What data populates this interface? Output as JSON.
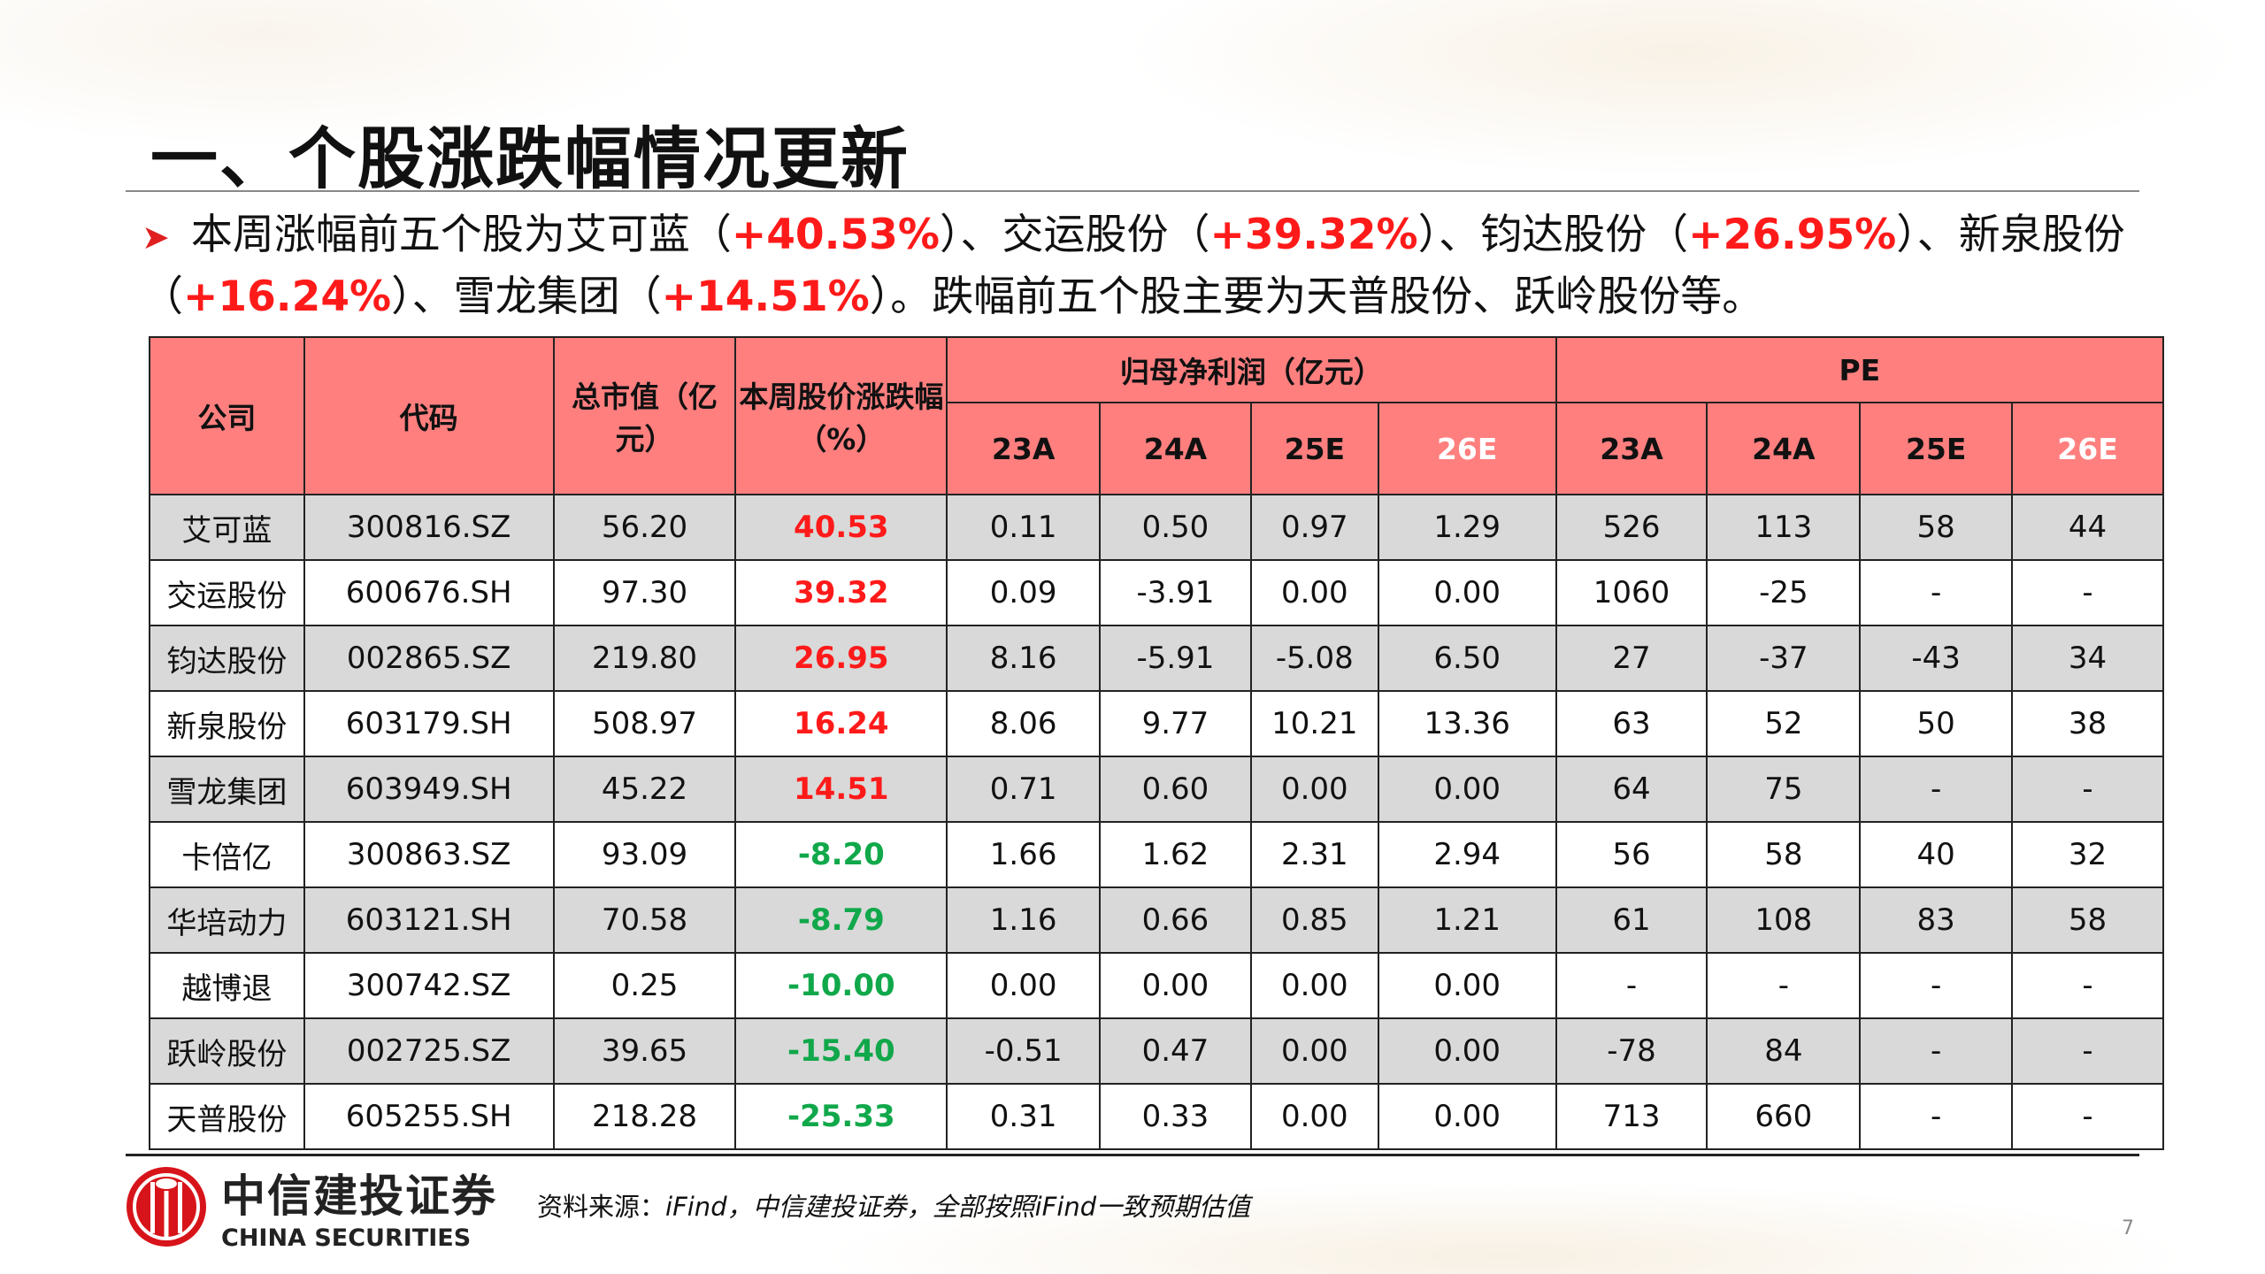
{
  "title": "一、个股涨跌幅情况更新",
  "bullet": {
    "p1": "本周涨幅前五个股为艾可蓝（",
    "v1": "+40.53%",
    "p2": "）、交运股份（",
    "v2": "+39.32%",
    "p3": "）、钧达股份（",
    "v3": "+26.95%",
    "p4": "）、新泉股份（",
    "v4": "+16.24%",
    "p5": "）、雪龙集团（",
    "v5": "+14.51%",
    "p6": "）。跌幅前五个股主要为天普股份、跃岭股份等。"
  },
  "table": {
    "headers": {
      "company": "公司",
      "code": "代码",
      "mcap": "总市值（亿元）",
      "change": "本周股价涨跌幅（%）",
      "profit": "归母净利润（亿元）",
      "pe": "PE",
      "years": [
        "23A",
        "24A",
        "25E",
        "26E"
      ]
    },
    "rows": [
      [
        "艾可蓝",
        "300816.SZ",
        "56.20",
        "40.53",
        "0.11",
        "0.50",
        "0.97",
        "1.29",
        "526",
        "113",
        "58",
        "44"
      ],
      [
        "交运股份",
        "600676.SH",
        "97.30",
        "39.32",
        "0.09",
        "-3.91",
        "0.00",
        "0.00",
        "1060",
        "-25",
        "-",
        "-"
      ],
      [
        "钧达股份",
        "002865.SZ",
        "219.80",
        "26.95",
        "8.16",
        "-5.91",
        "-5.08",
        "6.50",
        "27",
        "-37",
        "-43",
        "34"
      ],
      [
        "新泉股份",
        "603179.SH",
        "508.97",
        "16.24",
        "8.06",
        "9.77",
        "10.21",
        "13.36",
        "63",
        "52",
        "50",
        "38"
      ],
      [
        "雪龙集团",
        "603949.SH",
        "45.22",
        "14.51",
        "0.71",
        "0.60",
        "0.00",
        "0.00",
        "64",
        "75",
        "-",
        "-"
      ],
      [
        "卡倍亿",
        "300863.SZ",
        "93.09",
        "-8.20",
        "1.66",
        "1.62",
        "2.31",
        "2.94",
        "56",
        "58",
        "40",
        "32"
      ],
      [
        "华培动力",
        "603121.SH",
        "70.58",
        "-8.79",
        "1.16",
        "0.66",
        "0.85",
        "1.21",
        "61",
        "108",
        "83",
        "58"
      ],
      [
        "越博退",
        "300742.SZ",
        "0.25",
        "-10.00",
        "0.00",
        "0.00",
        "0.00",
        "0.00",
        "-",
        "-",
        "-",
        "-"
      ],
      [
        "跃岭股份",
        "002725.SZ",
        "39.65",
        "-15.40",
        "-0.51",
        "0.47",
        "0.00",
        "0.00",
        "-78",
        "84",
        "-",
        "-"
      ],
      [
        "天普股份",
        "605255.SH",
        "218.28",
        "-25.33",
        "0.31",
        "0.33",
        "0.00",
        "0.00",
        "713",
        "660",
        "-",
        "-"
      ]
    ]
  },
  "footer": {
    "logo_cn": "中信建投证券",
    "logo_en": "CHINA SECURITIES",
    "source_label": "资料来源：",
    "source_text": "iFind，中信建投证券，全部按照iFind一致预期估值",
    "page": "7"
  },
  "colors": {
    "header_bg": "#ff7f7f",
    "up": "#ff1a1a",
    "down": "#10a84a",
    "stripe": "#d9d9d9"
  }
}
